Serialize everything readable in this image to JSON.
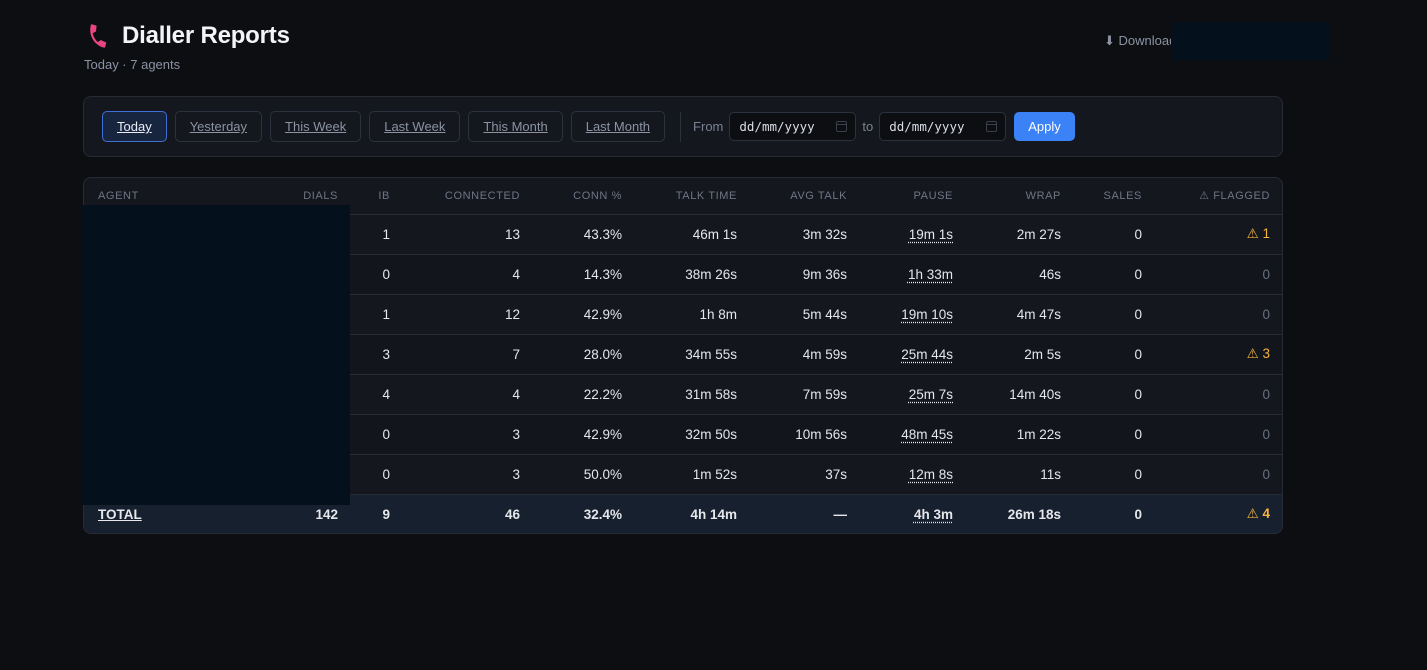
{
  "header": {
    "title": "Dialler Reports",
    "subtitle": "Today · 7 agents",
    "download_label": "⬇ Download"
  },
  "colors": {
    "background": "#0d0e12",
    "accent": "#3b82f6",
    "phone_icon": "#e9457e",
    "warning": "#f5b43c"
  },
  "filters": {
    "ranges": [
      "Today",
      "Yesterday",
      "This Week",
      "Last Week",
      "This Month",
      "Last Month"
    ],
    "active_range": "Today",
    "from_label": "From",
    "to_label": "to",
    "from_placeholder": "dd/mm/yyyy",
    "to_placeholder": "dd/mm/yyyy",
    "apply_label": "Apply"
  },
  "table": {
    "columns": [
      "AGENT",
      "DIALS",
      "IB",
      "CONNECTED",
      "CONN %",
      "TALK TIME",
      "AVG TALK",
      "PAUSE",
      "WRAP",
      "SALES",
      "⚠ FLAGGED"
    ],
    "rows": [
      {
        "agent": "",
        "dials": "",
        "ib": "1",
        "connected": "13",
        "conn_pct": "43.3%",
        "talk_time": "46m 1s",
        "avg_talk": "3m 32s",
        "pause": "19m 1s",
        "wrap": "2m 27s",
        "sales": "0",
        "flagged": "⚠ 1",
        "flag_state": "warn"
      },
      {
        "agent": "",
        "dials": "",
        "ib": "0",
        "connected": "4",
        "conn_pct": "14.3%",
        "talk_time": "38m 26s",
        "avg_talk": "9m 36s",
        "pause": "1h 33m",
        "wrap": "46s",
        "sales": "0",
        "flagged": "0",
        "flag_state": "zero"
      },
      {
        "agent": "",
        "dials": "",
        "ib": "1",
        "connected": "12",
        "conn_pct": "42.9%",
        "talk_time": "1h 8m",
        "avg_talk": "5m 44s",
        "pause": "19m 10s",
        "wrap": "4m 47s",
        "sales": "0",
        "flagged": "0",
        "flag_state": "zero"
      },
      {
        "agent": "",
        "dials": "",
        "ib": "3",
        "connected": "7",
        "conn_pct": "28.0%",
        "talk_time": "34m 55s",
        "avg_talk": "4m 59s",
        "pause": "25m 44s",
        "wrap": "2m 5s",
        "sales": "0",
        "flagged": "⚠ 3",
        "flag_state": "warn"
      },
      {
        "agent": "",
        "dials": "",
        "ib": "4",
        "connected": "4",
        "conn_pct": "22.2%",
        "talk_time": "31m 58s",
        "avg_talk": "7m 59s",
        "pause": "25m 7s",
        "wrap": "14m 40s",
        "sales": "0",
        "flagged": "0",
        "flag_state": "zero"
      },
      {
        "agent": "",
        "dials": "",
        "ib": "0",
        "connected": "3",
        "conn_pct": "42.9%",
        "talk_time": "32m 50s",
        "avg_talk": "10m 56s",
        "pause": "48m 45s",
        "wrap": "1m 22s",
        "sales": "0",
        "flagged": "0",
        "flag_state": "zero"
      },
      {
        "agent": "",
        "dials": "",
        "ib": "0",
        "connected": "3",
        "conn_pct": "50.0%",
        "talk_time": "1m 52s",
        "avg_talk": "37s",
        "pause": "12m 8s",
        "wrap": "11s",
        "sales": "0",
        "flagged": "0",
        "flag_state": "zero"
      }
    ],
    "total": {
      "label": "TOTAL",
      "dials": "142",
      "ib": "9",
      "connected": "46",
      "conn_pct": "32.4%",
      "talk_time": "4h 14m",
      "avg_talk": "—",
      "pause": "4h 3m",
      "wrap": "26m 18s",
      "sales": "0",
      "flagged": "⚠ 4"
    }
  }
}
